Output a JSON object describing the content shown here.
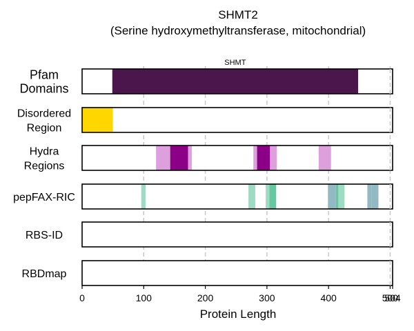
{
  "chart_data": {
    "type": "track",
    "title": "SHMT2",
    "subtitle": "(Serine hydroxymethyltransferase, mitochondrial)",
    "xlabel": "Protein Length",
    "xlim": [
      0,
      504
    ],
    "xticks": [
      0,
      100,
      200,
      300,
      400,
      500,
      504
    ],
    "grid": "vertical dashed at 100, 200, 300, 400, 500",
    "colors": {
      "pfam": "#4b164c",
      "disordered": "#ffd700",
      "hydra_light": "#dda0dd",
      "hydra_dark": "#8b0086",
      "pepfax_light": "#9fdac4",
      "pepfax_mid": "#66c8a0",
      "pepfax_blue": "#93bac4",
      "grid": "#c8c8c8"
    },
    "tracks": [
      {
        "label_lines": [
          "Pfam",
          "Domains"
        ],
        "segments": [
          {
            "start": 49,
            "end": 448,
            "color": "pfam",
            "label": "SHMT"
          }
        ]
      },
      {
        "label_lines": [
          "Disordered",
          "Region"
        ],
        "segments": [
          {
            "start": 0,
            "end": 50,
            "color": "disordered"
          }
        ]
      },
      {
        "label_lines": [
          "Hydra",
          "Regions"
        ],
        "segments": [
          {
            "start": 120,
            "end": 143,
            "color": "hydra_light"
          },
          {
            "start": 143,
            "end": 172,
            "color": "hydra_dark"
          },
          {
            "start": 172,
            "end": 178,
            "color": "hydra_light"
          },
          {
            "start": 278,
            "end": 284,
            "color": "hydra_light"
          },
          {
            "start": 284,
            "end": 305,
            "color": "hydra_dark"
          },
          {
            "start": 305,
            "end": 316,
            "color": "hydra_light"
          },
          {
            "start": 384,
            "end": 404,
            "color": "hydra_light"
          }
        ]
      },
      {
        "label_lines": [
          "pepFAX-RIC"
        ],
        "segments": [
          {
            "start": 96,
            "end": 103,
            "color": "pepfax_light"
          },
          {
            "start": 270,
            "end": 281,
            "color": "pepfax_light"
          },
          {
            "start": 298,
            "end": 304,
            "color": "pepfax_light"
          },
          {
            "start": 304,
            "end": 315,
            "color": "pepfax_mid"
          },
          {
            "start": 399,
            "end": 412,
            "color": "pepfax_blue"
          },
          {
            "start": 412,
            "end": 416,
            "color": "pepfax_mid"
          },
          {
            "start": 416,
            "end": 426,
            "color": "pepfax_light"
          },
          {
            "start": 463,
            "end": 470,
            "color": "pepfax_blue"
          },
          {
            "start": 470,
            "end": 481,
            "color": "pepfax_blue"
          }
        ]
      },
      {
        "label_lines": [
          "RBS-ID"
        ],
        "segments": []
      },
      {
        "label_lines": [
          "RBDmap"
        ],
        "segments": []
      }
    ]
  }
}
